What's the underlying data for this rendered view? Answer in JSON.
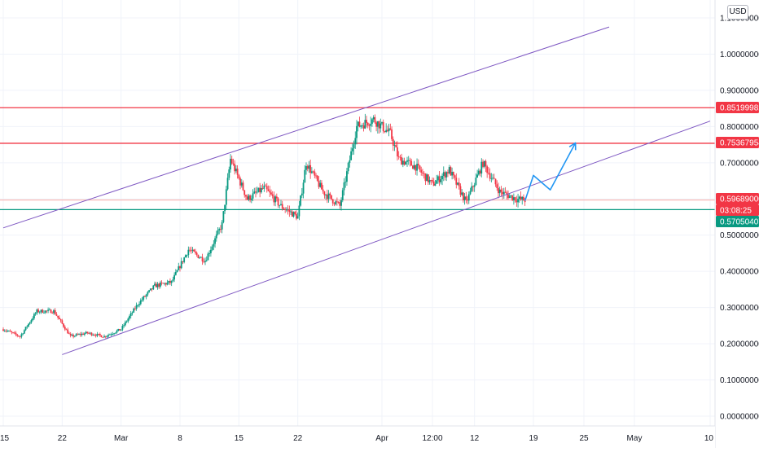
{
  "currency": "USD",
  "chart_data": {
    "type": "candlestick",
    "y_axis": {
      "scale": "linear",
      "ylim": [
        -0.02,
        1.13
      ],
      "ticks": [
        1.1,
        1.0,
        0.9,
        0.8,
        0.7,
        0.6,
        0.5,
        0.4,
        0.3,
        0.2,
        0.1,
        0.0
      ],
      "tick_labels": [
        "1.10000000",
        "1.00000000",
        "0.90000000",
        "0.80000000",
        "0.70000000",
        "0.60000000",
        "0.50000000",
        "0.40000000",
        "0.30000000",
        "0.20000000",
        "0.10000000",
        "0.00000000"
      ]
    },
    "x_axis": {
      "unit": "day",
      "range": [
        "2021-02-15",
        "2021-05-10"
      ],
      "ticks": [
        {
          "date": "2021-02-15",
          "label": "15"
        },
        {
          "date": "2021-02-22",
          "label": "22"
        },
        {
          "date": "2021-03-01",
          "label": "Mar"
        },
        {
          "date": "2021-03-08",
          "label": "8"
        },
        {
          "date": "2021-03-15",
          "label": "15"
        },
        {
          "date": "2021-03-22",
          "label": "22"
        },
        {
          "date": "2021-04-01",
          "label": "Apr"
        },
        {
          "date": "2021-04-07",
          "label": "12:00"
        },
        {
          "date": "2021-04-12",
          "label": "12"
        },
        {
          "date": "2021-04-19",
          "label": "19"
        },
        {
          "date": "2021-04-25",
          "label": "25"
        },
        {
          "date": "2021-05-01",
          "label": "May"
        },
        {
          "date": "2021-05-10",
          "label": "10"
        }
      ]
    },
    "price_path": [
      {
        "date": "2021-02-15",
        "price": 0.24
      },
      {
        "date": "2021-02-17",
        "price": 0.22
      },
      {
        "date": "2021-02-19",
        "price": 0.29
      },
      {
        "date": "2021-02-21",
        "price": 0.29
      },
      {
        "date": "2021-02-23",
        "price": 0.22
      },
      {
        "date": "2021-02-25",
        "price": 0.23
      },
      {
        "date": "2021-02-27",
        "price": 0.22
      },
      {
        "date": "2021-03-01",
        "price": 0.24
      },
      {
        "date": "2021-03-03",
        "price": 0.31
      },
      {
        "date": "2021-03-05",
        "price": 0.36
      },
      {
        "date": "2021-03-07",
        "price": 0.37
      },
      {
        "date": "2021-03-09",
        "price": 0.46
      },
      {
        "date": "2021-03-11",
        "price": 0.43
      },
      {
        "date": "2021-03-13",
        "price": 0.53
      },
      {
        "date": "2021-03-14",
        "price": 0.71
      },
      {
        "date": "2021-03-16",
        "price": 0.6
      },
      {
        "date": "2021-03-18",
        "price": 0.63
      },
      {
        "date": "2021-03-20",
        "price": 0.58
      },
      {
        "date": "2021-03-22",
        "price": 0.55
      },
      {
        "date": "2021-03-23",
        "price": 0.7
      },
      {
        "date": "2021-03-25",
        "price": 0.62
      },
      {
        "date": "2021-03-27",
        "price": 0.58
      },
      {
        "date": "2021-03-29",
        "price": 0.8
      },
      {
        "date": "2021-03-31",
        "price": 0.82
      },
      {
        "date": "2021-04-02",
        "price": 0.78
      },
      {
        "date": "2021-04-03",
        "price": 0.71
      },
      {
        "date": "2021-04-05",
        "price": 0.69
      },
      {
        "date": "2021-04-07",
        "price": 0.64
      },
      {
        "date": "2021-04-09",
        "price": 0.68
      },
      {
        "date": "2021-04-11",
        "price": 0.59
      },
      {
        "date": "2021-04-13",
        "price": 0.7
      },
      {
        "date": "2021-04-15",
        "price": 0.62
      },
      {
        "date": "2021-04-17",
        "price": 0.6
      },
      {
        "date": "2021-04-18",
        "price": 0.5969
      }
    ],
    "price_labels": [
      {
        "label": "0.85199982",
        "value": 0.85199982,
        "color": "#f23645"
      },
      {
        "label": "0.75367954",
        "value": 0.75367954,
        "color": "#f23645"
      },
      {
        "label": "0.59689000",
        "value": 0.59689,
        "color": "#f23645"
      },
      {
        "label": "03:08:25",
        "value": 0.57,
        "color": "#f23645"
      },
      {
        "label": "0.57050407",
        "value": 0.57050407,
        "color": "#089981"
      }
    ],
    "horizontal_levels": [
      {
        "value": 0.85199982,
        "color": "#f23645"
      },
      {
        "value": 0.75367954,
        "color": "#f23645"
      },
      {
        "value": 0.57050407,
        "color": "#089981"
      }
    ],
    "last_price_line": {
      "value": 0.59689,
      "color": "#f7a9a7"
    },
    "channel_lines": [
      {
        "points": [
          {
            "date": "2021-02-15",
            "price": 0.52
          },
          {
            "date": "2021-04-28",
            "price": 1.075
          }
        ],
        "color": "#7e57c2"
      },
      {
        "points": [
          {
            "date": "2021-02-22",
            "price": 0.17
          },
          {
            "date": "2021-05-10",
            "price": 0.815
          }
        ],
        "color": "#7e57c2"
      }
    ],
    "projection_path": {
      "points": [
        {
          "date": "2021-04-18",
          "price": 0.595
        },
        {
          "date": "2021-04-19",
          "price": 0.665
        },
        {
          "date": "2021-04-21",
          "price": 0.625
        },
        {
          "date": "2021-04-24",
          "price": 0.755
        }
      ],
      "color": "#2196f3"
    },
    "candle_colors": {
      "up": "#089981",
      "down": "#f23645"
    },
    "grid": true
  }
}
